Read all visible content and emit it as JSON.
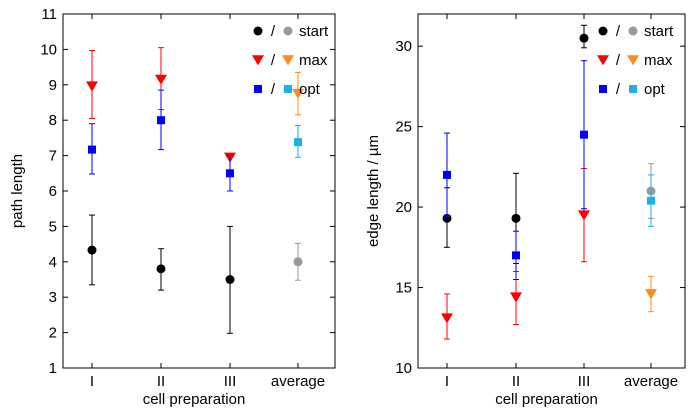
{
  "chart_data": [
    {
      "type": "scatter",
      "xlabel": "cell preparation",
      "ylabel": "path length",
      "categories": [
        "I",
        "II",
        "III",
        "average"
      ],
      "ylim": [
        1,
        11
      ],
      "yticks": [
        1,
        2,
        3,
        4,
        5,
        6,
        7,
        8,
        9,
        10,
        11
      ],
      "legend": {
        "position": "top-right",
        "separator": "/",
        "entries": [
          "start",
          "max",
          "opt"
        ]
      },
      "series": [
        {
          "name": "start",
          "marker": "circle",
          "values": [
            4.33,
            3.8,
            3.5
          ],
          "err_low": [
            3.35,
            3.2,
            1.98
          ],
          "err_high": [
            5.32,
            4.37,
            5.0
          ],
          "color": "#000000",
          "avg": {
            "value": 4.0,
            "low": 3.48,
            "high": 4.52,
            "color": "#999999"
          }
        },
        {
          "name": "max",
          "marker": "triangle-down",
          "values": [
            8.96,
            9.15,
            6.95
          ],
          "err_low": [
            8.05,
            8.3,
            6.95
          ],
          "err_high": [
            9.97,
            10.05,
            6.95
          ],
          "color": "#ff0000",
          "avg": {
            "value": 8.75,
            "low": 8.15,
            "high": 9.35,
            "color": "#ff8c1a"
          }
        },
        {
          "name": "opt",
          "marker": "square",
          "values": [
            7.17,
            8.0,
            6.5
          ],
          "err_low": [
            6.48,
            7.17,
            6.0
          ],
          "err_high": [
            7.9,
            8.85,
            7.0
          ],
          "color": "#0000ff",
          "avg": {
            "value": 7.38,
            "low": 6.95,
            "high": 7.85,
            "color": "#1ab2e6"
          }
        }
      ]
    },
    {
      "type": "scatter",
      "xlabel": "cell preparation",
      "ylabel": "edge length / µm",
      "categories": [
        "I",
        "II",
        "III",
        "average"
      ],
      "ylim": [
        10,
        32
      ],
      "yticks": [
        10,
        15,
        20,
        25,
        30
      ],
      "legend": {
        "position": "top-right",
        "separator": "/",
        "entries": [
          "start",
          "max",
          "opt"
        ]
      },
      "series": [
        {
          "name": "start",
          "marker": "circle",
          "values": [
            19.3,
            19.3,
            30.5
          ],
          "err_low": [
            17.5,
            16.5,
            29.9
          ],
          "err_high": [
            21.2,
            22.1,
            31.3
          ],
          "color": "#000000",
          "avg": {
            "value": 21.0,
            "low": 19.3,
            "high": 22.7,
            "color": "#999999"
          }
        },
        {
          "name": "max",
          "marker": "triangle-down",
          "values": [
            13.1,
            14.4,
            19.5
          ],
          "err_low": [
            11.8,
            12.7,
            16.6
          ],
          "err_high": [
            14.6,
            16.0,
            22.4
          ],
          "color": "#ff0000",
          "avg": {
            "value": 14.6,
            "low": 13.5,
            "high": 15.7,
            "color": "#ff8c1a"
          }
        },
        {
          "name": "opt",
          "marker": "square",
          "values": [
            22.0,
            17.0,
            24.5
          ],
          "err_low": [
            19.4,
            15.5,
            19.9
          ],
          "err_high": [
            24.6,
            18.5,
            29.1
          ],
          "color": "#0000ff",
          "avg": {
            "value": 20.4,
            "low": 18.8,
            "high": 22.0,
            "color": "#1ab2e6"
          }
        }
      ]
    }
  ]
}
